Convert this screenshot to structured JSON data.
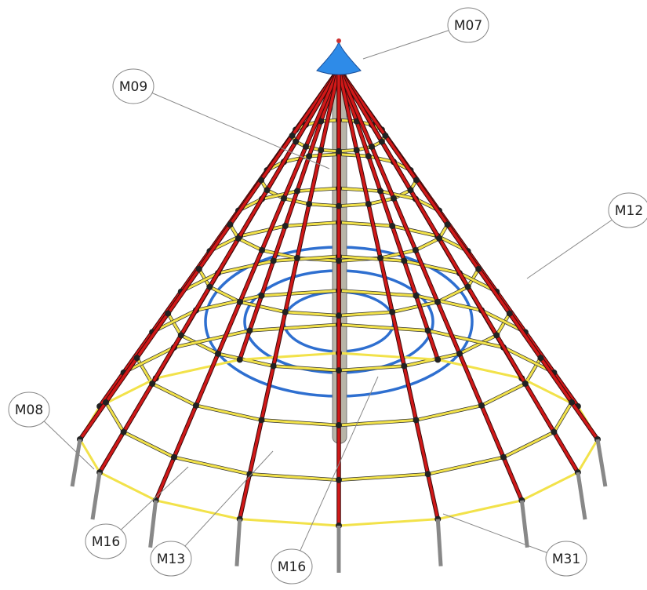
{
  "callouts": [
    {
      "label": "M07"
    },
    {
      "label": "M09"
    },
    {
      "label": "M12"
    },
    {
      "label": "M08"
    },
    {
      "label": "M16"
    },
    {
      "label": "M13"
    },
    {
      "label": "M16"
    },
    {
      "label": "M31"
    }
  ]
}
